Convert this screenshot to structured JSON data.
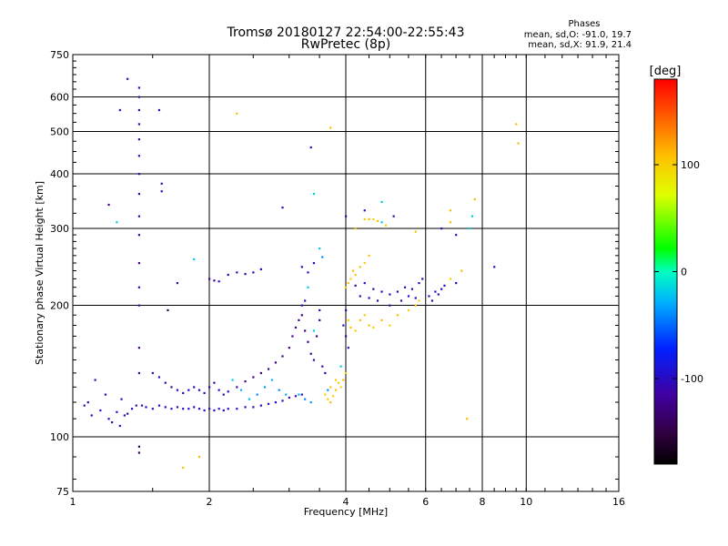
{
  "chart_data": {
    "type": "scatter",
    "title": "Tromsø 20180127 22:54:00-22:55:43",
    "subtitle": "RwPretec (8p)",
    "xlabel": "Frequency [MHz]",
    "ylabel": "Stationary phase Virtual Height [km]",
    "x_scale": "log",
    "y_scale": "log",
    "xlim": [
      1,
      16
    ],
    "ylim": [
      75,
      750
    ],
    "x_ticks": [
      1,
      2,
      4,
      6,
      8,
      10,
      16
    ],
    "x_tick_labels": [
      "1",
      "2",
      "4",
      "6",
      "8",
      "10",
      "16"
    ],
    "x_gridlines": [
      1,
      2,
      4,
      6,
      8,
      10
    ],
    "y_ticks": [
      75,
      100,
      200,
      300,
      400,
      500,
      600,
      750
    ],
    "y_tick_labels": [
      "75",
      "100",
      "200",
      "300",
      "400",
      "500",
      "600",
      "750"
    ],
    "grid": true,
    "stats_title": "Phases",
    "stats_line1": "mean, sd,O: -91.0, 19.7",
    "stats_line2": "mean, sd,X:  91.9, 21.4",
    "colorbar": {
      "label": "[deg]",
      "range": [
        -180,
        180
      ],
      "tick_values": [
        100,
        0,
        -100
      ],
      "tick_labels": [
        "100",
        "0",
        "-100"
      ],
      "colormap": "black-purple-blue-cyan-green-yellow-orange-red"
    },
    "series": [
      {
        "points": [
          [
            1.06,
            118,
            -100
          ],
          [
            1.1,
            112,
            -105
          ],
          [
            1.15,
            115,
            -95
          ],
          [
            1.2,
            110,
            -100
          ],
          [
            1.25,
            114,
            -90
          ],
          [
            1.3,
            112,
            -105
          ],
          [
            1.35,
            116,
            -100
          ],
          [
            1.38,
            118,
            -95
          ],
          [
            1.12,
            135,
            -110
          ],
          [
            1.18,
            125,
            -100
          ],
          [
            1.28,
            122,
            -95
          ],
          [
            1.32,
            113,
            -100
          ],
          [
            1.22,
            108,
            -110
          ],
          [
            1.27,
            106,
            -100
          ],
          [
            1.08,
            120,
            -110
          ],
          [
            1.42,
            118,
            -100
          ],
          [
            1.45,
            117,
            -105
          ],
          [
            1.5,
            116,
            -95
          ],
          [
            1.55,
            118,
            -100
          ],
          [
            1.6,
            117,
            -100
          ],
          [
            1.65,
            116,
            -95
          ],
          [
            1.7,
            117,
            -100
          ],
          [
            1.75,
            116,
            -105
          ],
          [
            1.8,
            116,
            -100
          ],
          [
            1.85,
            117,
            -90
          ],
          [
            1.9,
            116,
            -100
          ],
          [
            1.95,
            115,
            -95
          ],
          [
            2.0,
            116,
            -100
          ],
          [
            2.05,
            115,
            -105
          ],
          [
            2.1,
            116,
            -95
          ],
          [
            2.15,
            115,
            -100
          ],
          [
            2.2,
            116,
            -100
          ],
          [
            2.3,
            116,
            -95
          ],
          [
            2.4,
            117,
            -100
          ],
          [
            2.5,
            117,
            -105
          ],
          [
            2.6,
            118,
            -95
          ],
          [
            2.7,
            119,
            -100
          ],
          [
            2.8,
            120,
            -95
          ],
          [
            2.9,
            121,
            -100
          ],
          [
            3.0,
            123,
            -105
          ],
          [
            3.1,
            124,
            -100
          ],
          [
            3.2,
            125,
            -95
          ],
          [
            1.5,
            140,
            -100
          ],
          [
            1.55,
            137,
            -95
          ],
          [
            1.6,
            133,
            -100
          ],
          [
            1.65,
            130,
            -105
          ],
          [
            1.7,
            128,
            -100
          ],
          [
            1.75,
            126,
            -95
          ],
          [
            1.8,
            128,
            -100
          ],
          [
            1.85,
            130,
            -100
          ],
          [
            1.9,
            128,
            -105
          ],
          [
            1.95,
            126,
            -95
          ],
          [
            2.0,
            130,
            -100
          ],
          [
            2.05,
            133,
            -100
          ],
          [
            2.1,
            128,
            -95
          ],
          [
            2.15,
            125,
            -100
          ],
          [
            2.2,
            127,
            -105
          ],
          [
            2.3,
            130,
            -110
          ],
          [
            2.4,
            134,
            -120
          ],
          [
            2.5,
            137,
            -120
          ],
          [
            2.6,
            140,
            -125
          ],
          [
            2.7,
            143,
            -120
          ],
          [
            2.8,
            148,
            -125
          ],
          [
            2.9,
            153,
            -120
          ],
          [
            3.0,
            160,
            -125
          ],
          [
            3.05,
            170,
            -120
          ],
          [
            3.1,
            178,
            -125
          ],
          [
            3.15,
            185,
            -120
          ],
          [
            3.2,
            190,
            -130
          ],
          [
            3.25,
            175,
            -125
          ],
          [
            3.3,
            165,
            -120
          ],
          [
            3.35,
            155,
            -125
          ],
          [
            3.4,
            150,
            -120
          ],
          [
            3.45,
            170,
            -125
          ],
          [
            3.5,
            185,
            -120
          ],
          [
            3.55,
            145,
            -115
          ],
          [
            3.6,
            140,
            -110
          ],
          [
            2.25,
            135,
            -20
          ],
          [
            2.35,
            128,
            -30
          ],
          [
            2.45,
            122,
            -25
          ],
          [
            2.55,
            125,
            -40
          ],
          [
            2.65,
            130,
            -35
          ],
          [
            2.75,
            135,
            -30
          ],
          [
            2.85,
            128,
            -40
          ],
          [
            2.95,
            125,
            -30
          ],
          [
            3.15,
            125,
            -30
          ],
          [
            3.25,
            122,
            -40
          ],
          [
            3.35,
            120,
            -35
          ],
          [
            1.4,
            200,
            -110
          ],
          [
            1.4,
            220,
            -105
          ],
          [
            1.4,
            250,
            -120
          ],
          [
            1.4,
            290,
            -110
          ],
          [
            1.4,
            320,
            -105
          ],
          [
            1.4,
            360,
            -110
          ],
          [
            1.4,
            400,
            -105
          ],
          [
            1.4,
            440,
            -100
          ],
          [
            1.4,
            480,
            -110
          ],
          [
            1.4,
            520,
            -105
          ],
          [
            1.4,
            560,
            -110
          ],
          [
            1.4,
            600,
            -105
          ],
          [
            1.4,
            630,
            -100
          ],
          [
            1.4,
            160,
            -120
          ],
          [
            1.4,
            140,
            -115
          ],
          [
            1.4,
            95,
            -140
          ],
          [
            1.4,
            92,
            -150
          ],
          [
            1.32,
            660,
            -110
          ],
          [
            1.27,
            560,
            -100
          ],
          [
            1.55,
            560,
            -105
          ],
          [
            1.57,
            380,
            -110
          ],
          [
            1.57,
            365,
            -100
          ],
          [
            1.25,
            310,
            -20
          ],
          [
            1.2,
            340,
            -120
          ],
          [
            2.0,
            230,
            -110
          ],
          [
            2.05,
            228,
            -105
          ],
          [
            2.1,
            227,
            -100
          ],
          [
            2.2,
            235,
            -110
          ],
          [
            2.3,
            238,
            -105
          ],
          [
            2.4,
            236,
            -110
          ],
          [
            2.5,
            238,
            -100
          ],
          [
            2.6,
            242,
            -105
          ],
          [
            1.7,
            225,
            -110
          ],
          [
            1.85,
            255,
            -20
          ],
          [
            3.2,
            245,
            -110
          ],
          [
            3.3,
            238,
            -100
          ],
          [
            3.4,
            250,
            -105
          ],
          [
            3.5,
            270,
            -20
          ],
          [
            3.55,
            258,
            -40
          ],
          [
            2.9,
            335,
            -100
          ],
          [
            3.35,
            460,
            -110
          ],
          [
            3.4,
            360,
            -20
          ],
          [
            3.3,
            220,
            -20
          ],
          [
            3.25,
            205,
            -100
          ],
          [
            3.2,
            200,
            -110
          ],
          [
            3.5,
            195,
            -110
          ],
          [
            3.4,
            175,
            -20
          ],
          [
            3.65,
            128,
            -40
          ],
          [
            3.65,
            122,
            100
          ],
          [
            3.7,
            120,
            110
          ],
          [
            3.75,
            124,
            100
          ],
          [
            3.8,
            128,
            110
          ],
          [
            3.85,
            133,
            100
          ],
          [
            3.9,
            130,
            95
          ],
          [
            3.95,
            135,
            110
          ],
          [
            4.0,
            140,
            100
          ],
          [
            3.7,
            130,
            105
          ],
          [
            3.8,
            135,
            100
          ],
          [
            3.9,
            145,
            -20
          ],
          [
            3.6,
            125,
            100
          ],
          [
            4.0,
            220,
            100
          ],
          [
            4.05,
            225,
            110
          ],
          [
            4.1,
            230,
            100
          ],
          [
            4.15,
            240,
            110
          ],
          [
            4.2,
            235,
            100
          ],
          [
            4.3,
            245,
            110
          ],
          [
            4.4,
            250,
            100
          ],
          [
            4.5,
            260,
            110
          ],
          [
            4.2,
            300,
            110
          ],
          [
            4.4,
            315,
            100
          ],
          [
            4.5,
            315,
            110
          ],
          [
            4.6,
            315,
            100
          ],
          [
            4.7,
            312,
            110
          ],
          [
            4.8,
            310,
            -20
          ],
          [
            4.9,
            305,
            100
          ],
          [
            4.05,
            185,
            100
          ],
          [
            4.1,
            178,
            110
          ],
          [
            4.2,
            175,
            100
          ],
          [
            4.3,
            185,
            110
          ],
          [
            4.4,
            190,
            100
          ],
          [
            4.5,
            180,
            110
          ],
          [
            4.6,
            178,
            100
          ],
          [
            4.8,
            185,
            110
          ],
          [
            5.0,
            180,
            100
          ],
          [
            5.2,
            190,
            110
          ],
          [
            5.5,
            195,
            100
          ],
          [
            5.7,
            200,
            110
          ],
          [
            5.8,
            205,
            100
          ],
          [
            4.2,
            222,
            -110
          ],
          [
            4.4,
            225,
            -100
          ],
          [
            4.6,
            218,
            -110
          ],
          [
            4.8,
            215,
            -105
          ],
          [
            5.0,
            212,
            -110
          ],
          [
            5.2,
            215,
            -100
          ],
          [
            5.4,
            220,
            -110
          ],
          [
            5.6,
            218,
            -105
          ],
          [
            5.8,
            225,
            -110
          ],
          [
            5.9,
            230,
            -100
          ],
          [
            4.3,
            210,
            -110
          ],
          [
            4.5,
            208,
            -100
          ],
          [
            4.7,
            205,
            -110
          ],
          [
            5.0,
            200,
            -105
          ],
          [
            5.3,
            205,
            -110
          ],
          [
            5.5,
            210,
            -100
          ],
          [
            5.7,
            208,
            -105
          ],
          [
            4.0,
            195,
            -110
          ],
          [
            3.95,
            180,
            -100
          ],
          [
            4.0,
            170,
            -110
          ],
          [
            4.05,
            160,
            -100
          ],
          [
            4.0,
            320,
            -110
          ],
          [
            4.4,
            330,
            -100
          ],
          [
            5.1,
            320,
            -110
          ],
          [
            4.8,
            345,
            -20
          ],
          [
            5.7,
            295,
            110
          ],
          [
            6.1,
            210,
            -100
          ],
          [
            6.2,
            205,
            -110
          ],
          [
            6.3,
            215,
            -100
          ],
          [
            6.4,
            212,
            -110
          ],
          [
            6.5,
            218,
            -100
          ],
          [
            6.6,
            222,
            -110
          ],
          [
            6.8,
            230,
            100
          ],
          [
            7.0,
            225,
            -100
          ],
          [
            6.5,
            300,
            -100
          ],
          [
            6.8,
            310,
            110
          ],
          [
            7.5,
            300,
            -20
          ],
          [
            7.6,
            320,
            -20
          ],
          [
            7.0,
            290,
            -100
          ],
          [
            7.2,
            240,
            110
          ],
          [
            7.7,
            350,
            110
          ],
          [
            6.8,
            330,
            110
          ],
          [
            8.5,
            245,
            -100
          ],
          [
            7.4,
            110,
            110
          ],
          [
            9.5,
            520,
            110
          ],
          [
            9.6,
            470,
            110
          ],
          [
            1.9,
            90,
            110
          ],
          [
            1.75,
            85,
            110
          ],
          [
            1.62,
            195,
            -150
          ],
          [
            2.3,
            550,
            110
          ],
          [
            3.7,
            510,
            110
          ]
        ]
      }
    ]
  }
}
